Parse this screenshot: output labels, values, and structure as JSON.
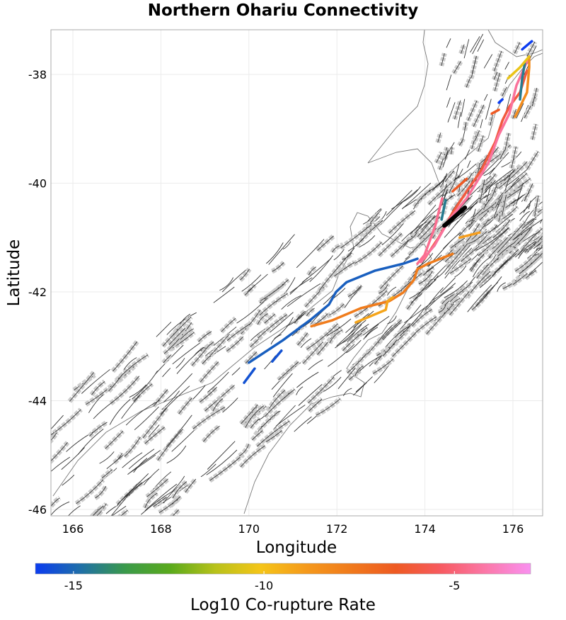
{
  "title": "Northern Ohariu Connectivity",
  "chart_data": {
    "type": "map",
    "title": "Northern Ohariu Connectivity",
    "xlabel": "Longitude",
    "ylabel": "Latitude",
    "xlim": [
      165.5,
      176.7
    ],
    "ylim": [
      -46.1,
      -37.2
    ],
    "xticks": [
      "166",
      "168",
      "170",
      "172",
      "174",
      "176"
    ],
    "xtick_values": [
      166,
      168,
      170,
      172,
      174,
      176
    ],
    "yticks": [
      "-38",
      "-40",
      "-42",
      "-44",
      "-46"
    ],
    "ytick_values": [
      -38,
      -40,
      -42,
      -44,
      -46
    ],
    "grid": true,
    "colorbar": {
      "label": "Log10 Co-rupture Rate",
      "range": [
        -16,
        -3
      ],
      "ticks": [
        "-15",
        "-10",
        "-5"
      ],
      "tick_values": [
        -15,
        -10,
        -5
      ],
      "stops": [
        "#0b3cf0",
        "#1f6fa8",
        "#3a9a4a",
        "#5aaa1c",
        "#b8c21a",
        "#f5c518",
        "#f59a1c",
        "#f07a1c",
        "#ee5a22",
        "#f75a60",
        "#fb78a8",
        "#f990f0"
      ],
      "placement": "bottom"
    },
    "source_fault": {
      "name": "Northern Ohariu",
      "color": "#000000",
      "points": [
        [
          174.44,
          -40.78
        ],
        [
          174.63,
          -40.65
        ],
        [
          174.91,
          -40.45
        ]
      ]
    },
    "ruptures": [
      {
        "value": -15.2,
        "points": [
          [
            170.0,
            -43.3
          ],
          [
            170.77,
            -42.89
          ],
          [
            171.42,
            -42.5
          ],
          [
            171.82,
            -42.23
          ],
          [
            171.98,
            -42.0
          ],
          [
            172.22,
            -41.82
          ],
          [
            172.86,
            -41.61
          ],
          [
            173.51,
            -41.48
          ],
          [
            173.83,
            -41.39
          ]
        ]
      },
      {
        "value": -7.8,
        "points": [
          [
            171.42,
            -42.63
          ],
          [
            171.9,
            -42.52
          ],
          [
            172.54,
            -42.3
          ],
          [
            173.19,
            -42.17
          ],
          [
            173.51,
            -42.01
          ],
          [
            173.75,
            -41.78
          ],
          [
            173.83,
            -41.58
          ],
          [
            174.07,
            -41.48
          ],
          [
            174.63,
            -41.3
          ]
        ]
      },
      {
        "value": -9.2,
        "points": [
          [
            172.43,
            -42.56
          ],
          [
            173.11,
            -42.33
          ],
          [
            173.15,
            -42.17
          ],
          [
            173.27,
            -42.1
          ]
        ]
      },
      {
        "value": -15.5,
        "points": [
          [
            169.89,
            -43.67
          ],
          [
            170.13,
            -43.41
          ]
        ]
      },
      {
        "value": -15.5,
        "points": [
          [
            170.53,
            -43.28
          ],
          [
            170.74,
            -43.08
          ]
        ]
      },
      {
        "value": -6.0,
        "points": [
          [
            173.99,
            -41.39
          ],
          [
            174.31,
            -41.0
          ],
          [
            174.63,
            -40.54
          ],
          [
            174.95,
            -40.15
          ],
          [
            175.28,
            -39.76
          ],
          [
            175.6,
            -39.24
          ],
          [
            175.76,
            -38.85
          ],
          [
            175.92,
            -38.59
          ],
          [
            176.16,
            -38.33
          ],
          [
            176.32,
            -37.93
          ]
        ]
      },
      {
        "value": -4.4,
        "points": [
          [
            173.91,
            -41.45
          ],
          [
            174.23,
            -41.13
          ],
          [
            174.55,
            -40.67
          ],
          [
            174.95,
            -40.28
          ],
          [
            175.44,
            -39.63
          ],
          [
            175.68,
            -39.11
          ],
          [
            175.92,
            -38.72
          ],
          [
            176.08,
            -38.2
          ],
          [
            176.37,
            -37.67
          ]
        ]
      },
      {
        "value": -14.5,
        "points": [
          [
            176.16,
            -38.46
          ],
          [
            176.21,
            -38.07
          ],
          [
            176.27,
            -37.8
          ]
        ]
      },
      {
        "value": -8.4,
        "points": [
          [
            176.05,
            -38.78
          ],
          [
            176.32,
            -38.33
          ],
          [
            176.37,
            -37.87
          ],
          [
            176.37,
            -37.7
          ]
        ]
      },
      {
        "value": -10.3,
        "points": [
          [
            175.89,
            -38.07
          ],
          [
            176.16,
            -37.87
          ],
          [
            176.37,
            -37.67
          ]
        ]
      },
      {
        "value": -16.0,
        "points": [
          [
            176.21,
            -37.54
          ],
          [
            176.43,
            -37.39
          ]
        ]
      },
      {
        "value": -4.6,
        "points": [
          [
            174.39,
            -40.28
          ],
          [
            174.23,
            -40.8
          ],
          [
            173.99,
            -41.32
          ],
          [
            173.83,
            -41.48
          ]
        ]
      },
      {
        "value": -14.5,
        "points": [
          [
            174.47,
            -40.31
          ],
          [
            174.38,
            -40.67
          ]
        ]
      },
      {
        "value": -9.0,
        "points": [
          [
            174.79,
            -41.0
          ],
          [
            175.24,
            -40.91
          ]
        ]
      },
      {
        "value": -6.5,
        "points": [
          [
            174.63,
            -40.15
          ],
          [
            174.95,
            -39.92
          ]
        ]
      },
      {
        "value": -6.5,
        "points": [
          [
            175.52,
            -38.72
          ],
          [
            175.68,
            -38.65
          ]
        ]
      },
      {
        "value": -16.0,
        "points": [
          [
            175.68,
            -38.52
          ],
          [
            175.76,
            -38.46
          ]
        ]
      }
    ]
  }
}
